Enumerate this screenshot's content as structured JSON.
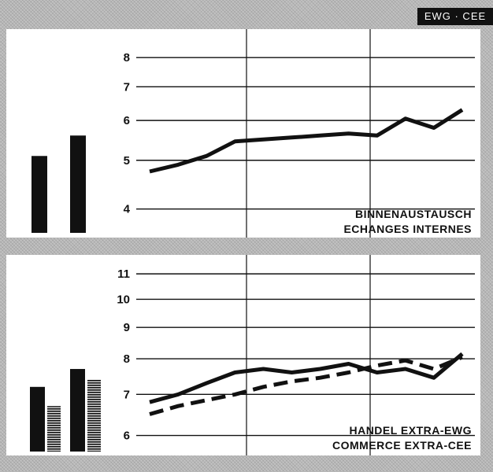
{
  "badge": "EWG · CEE",
  "chart_data": [
    {
      "type": "line",
      "label_lines": [
        "BINNENAUSTAUSCH",
        "ECHANGES INTERNES"
      ],
      "y_ticks": [
        4,
        5,
        6,
        7,
        8
      ],
      "ylim": [
        3.6,
        8.3
      ],
      "scale": "log",
      "x": [
        1,
        2,
        3,
        4,
        5,
        6,
        7,
        8,
        9,
        10,
        11,
        12
      ],
      "series": [
        {
          "values": [
            4.75,
            4.9,
            5.1,
            5.45,
            5.5,
            5.55,
            5.6,
            5.65,
            5.6,
            6.05,
            5.8,
            6.3
          ],
          "style": "solid"
        }
      ],
      "side_bars": [
        5.1,
        5.6
      ],
      "grid": "horizontal at ticks; vertical dividers",
      "color": "#111111"
    },
    {
      "type": "line",
      "label_lines": [
        "HANDEL EXTRA-EWG",
        "COMMERCE EXTRA-CEE"
      ],
      "y_ticks": [
        6,
        7,
        8,
        9,
        10,
        11
      ],
      "ylim": [
        5.6,
        11.3
      ],
      "scale": "log",
      "x": [
        1,
        2,
        3,
        4,
        5,
        6,
        7,
        8,
        9,
        10,
        11,
        12
      ],
      "series": [
        {
          "values": [
            6.8,
            7.0,
            7.3,
            7.6,
            7.7,
            7.6,
            7.7,
            7.85,
            7.6,
            7.7,
            7.45,
            8.15
          ],
          "style": "solid"
        },
        {
          "values": [
            6.5,
            6.7,
            6.85,
            7.0,
            7.2,
            7.35,
            7.45,
            7.6,
            7.8,
            7.95,
            7.7,
            8.05
          ],
          "style": "dashed"
        }
      ],
      "side_bars": [
        {
          "solid": 7.2,
          "hatched": 6.7
        },
        {
          "solid": 7.7,
          "hatched": 7.4
        }
      ],
      "grid": "horizontal at ticks; vertical dividers",
      "color": "#111111"
    }
  ]
}
